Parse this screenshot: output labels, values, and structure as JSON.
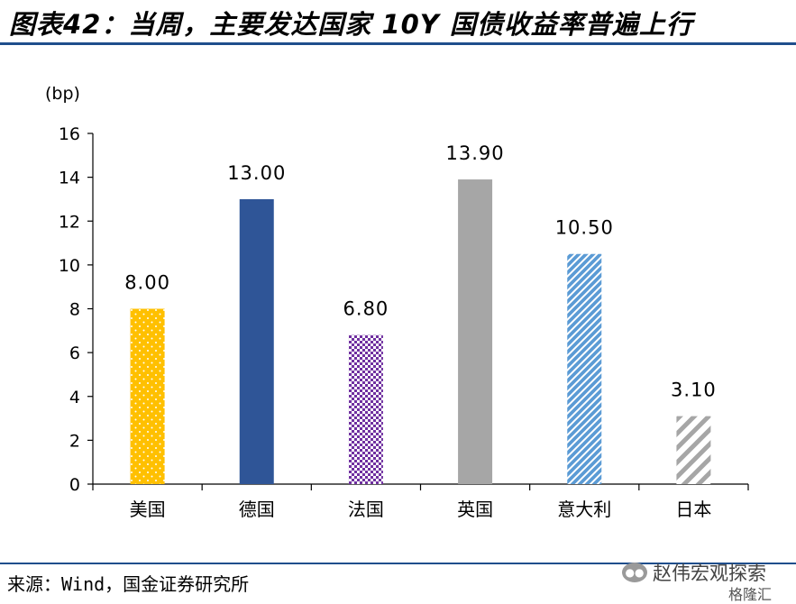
{
  "title": "图表42：当周，主要发达国家 10Y 国债收益率普遍上行",
  "source": "来源：Wind，国金证券研究所",
  "watermark": {
    "main": "赵伟宏观探索",
    "sub": "格隆汇"
  },
  "chart_data": {
    "type": "bar",
    "ylabel": "(bp)",
    "ylim": [
      0,
      16
    ],
    "yticks": [
      0,
      2,
      4,
      6,
      8,
      10,
      12,
      14,
      16
    ],
    "grid": false,
    "categories": [
      "美国",
      "德国",
      "法国",
      "英国",
      "意大利",
      "日本"
    ],
    "values": [
      8.0,
      13.0,
      6.8,
      13.9,
      10.5,
      3.1
    ],
    "data_labels": [
      "8.00",
      "13.00",
      "6.80",
      "13.90",
      "10.50",
      "3.10"
    ],
    "bar_styles": [
      {
        "fill": "#FFC000",
        "pattern": "dots",
        "pattern_color": "#ffffff"
      },
      {
        "fill": "#2F5597",
        "pattern": "solid"
      },
      {
        "fill": "#7030A0",
        "pattern": "checker",
        "pattern_color": "#ffffff"
      },
      {
        "fill": "#A6A6A6",
        "pattern": "solid"
      },
      {
        "fill": "#5B9BD5",
        "pattern": "diagonal",
        "pattern_color": "#ffffff"
      },
      {
        "fill": "#A6A6A6",
        "pattern": "wide-diagonal",
        "pattern_color": "#ffffff"
      }
    ]
  }
}
